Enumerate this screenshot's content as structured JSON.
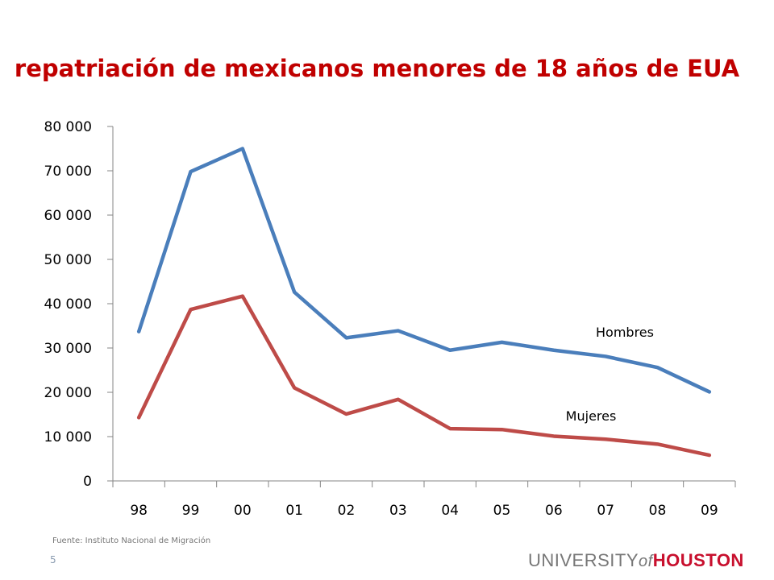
{
  "slide": {
    "title": "repatriación de mexicanos menores de 18 años de EUA",
    "source": "Fuente: Instituto Nacional de Migración",
    "page_number": "5",
    "logo": {
      "university": "UNIVERSITY",
      "of": "of",
      "houston": "HOUSTON"
    }
  },
  "chart_data": {
    "type": "line",
    "title": "repatriación de mexicanos menores de 18 años de EUA",
    "categories": [
      "98",
      "99",
      "00",
      "01",
      "02",
      "03",
      "04",
      "05",
      "06",
      "07",
      "08",
      "09"
    ],
    "y_ticks": [
      "0",
      "10 000",
      "20 000",
      "30 000",
      "40 000",
      "50 000",
      "60 000",
      "70 000",
      "80 000"
    ],
    "ylim": [
      0,
      80000
    ],
    "grid": false,
    "legend": "inline labels",
    "series": [
      {
        "name": "Hombres",
        "color": "#4a7ebb",
        "values": [
          33700,
          69800,
          75000,
          42600,
          32300,
          33900,
          29500,
          31300,
          29500,
          28100,
          25600,
          20100
        ]
      },
      {
        "name": "Mujeres",
        "color": "#be4b48",
        "values": [
          14300,
          38700,
          41700,
          21000,
          15100,
          18400,
          11800,
          11600,
          10100,
          9400,
          8300,
          5800
        ]
      }
    ]
  }
}
